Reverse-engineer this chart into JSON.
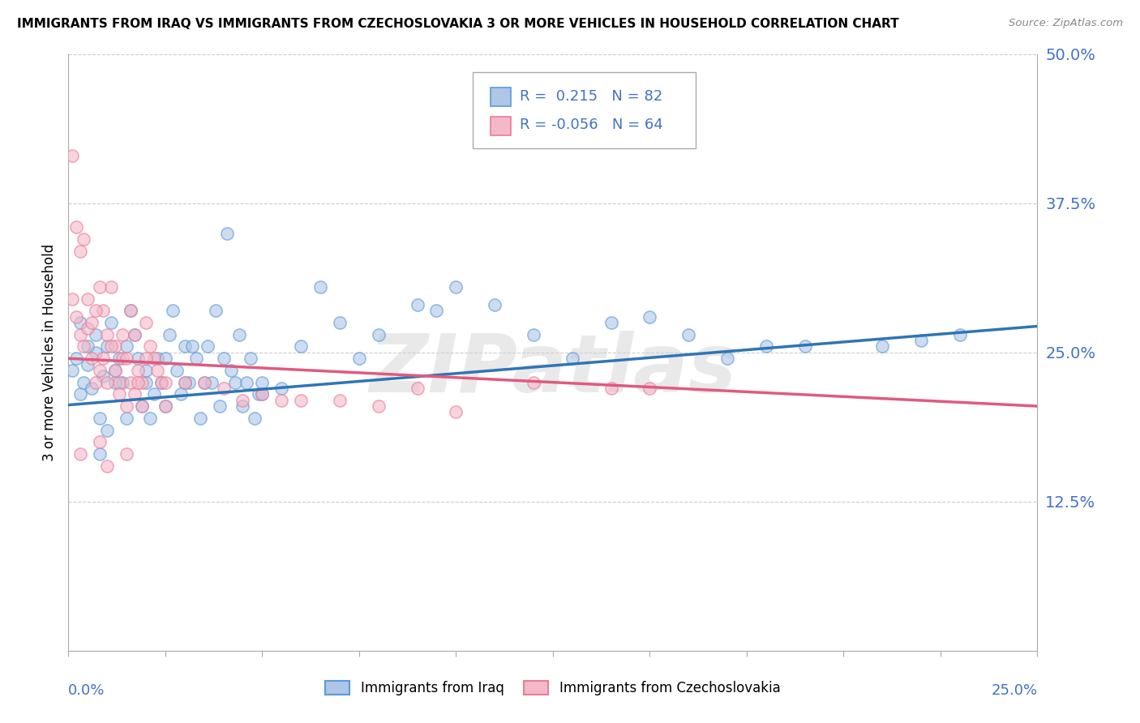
{
  "title": "IMMIGRANTS FROM IRAQ VS IMMIGRANTS FROM CZECHOSLOVAKIA 3 OR MORE VEHICLES IN HOUSEHOLD CORRELATION CHART",
  "source": "Source: ZipAtlas.com",
  "ylabel_label": "3 or more Vehicles in Household",
  "legend_blue_label": "Immigrants from Iraq",
  "legend_pink_label": "Immigrants from Czechoslovakia",
  "R_blue": 0.215,
  "N_blue": 82,
  "R_pink": -0.056,
  "N_pink": 64,
  "blue_color": "#aec6e8",
  "pink_color": "#f4b8c8",
  "blue_edge_color": "#5b9bd5",
  "pink_edge_color": "#e87d9a",
  "blue_line_color": "#2e75b6",
  "pink_line_color": "#e05a80",
  "watermark": "ZIPatlas",
  "blue_points": [
    [
      0.001,
      0.235
    ],
    [
      0.002,
      0.245
    ],
    [
      0.003,
      0.215
    ],
    [
      0.004,
      0.225
    ],
    [
      0.005,
      0.24
    ],
    [
      0.006,
      0.22
    ],
    [
      0.007,
      0.25
    ],
    [
      0.008,
      0.195
    ],
    [
      0.009,
      0.23
    ],
    [
      0.01,
      0.255
    ],
    [
      0.011,
      0.275
    ],
    [
      0.012,
      0.235
    ],
    [
      0.013,
      0.245
    ],
    [
      0.014,
      0.225
    ],
    [
      0.015,
      0.255
    ],
    [
      0.016,
      0.285
    ],
    [
      0.017,
      0.265
    ],
    [
      0.018,
      0.245
    ],
    [
      0.019,
      0.205
    ],
    [
      0.02,
      0.225
    ],
    [
      0.021,
      0.195
    ],
    [
      0.022,
      0.215
    ],
    [
      0.023,
      0.245
    ],
    [
      0.024,
      0.225
    ],
    [
      0.025,
      0.205
    ],
    [
      0.026,
      0.265
    ],
    [
      0.027,
      0.285
    ],
    [
      0.028,
      0.235
    ],
    [
      0.029,
      0.215
    ],
    [
      0.03,
      0.255
    ],
    [
      0.031,
      0.225
    ],
    [
      0.032,
      0.255
    ],
    [
      0.033,
      0.245
    ],
    [
      0.034,
      0.195
    ],
    [
      0.035,
      0.225
    ],
    [
      0.036,
      0.255
    ],
    [
      0.037,
      0.225
    ],
    [
      0.038,
      0.285
    ],
    [
      0.039,
      0.205
    ],
    [
      0.04,
      0.245
    ],
    [
      0.041,
      0.35
    ],
    [
      0.042,
      0.235
    ],
    [
      0.043,
      0.225
    ],
    [
      0.044,
      0.265
    ],
    [
      0.045,
      0.205
    ],
    [
      0.046,
      0.225
    ],
    [
      0.047,
      0.245
    ],
    [
      0.048,
      0.195
    ],
    [
      0.049,
      0.215
    ],
    [
      0.05,
      0.225
    ],
    [
      0.06,
      0.255
    ],
    [
      0.065,
      0.305
    ],
    [
      0.07,
      0.275
    ],
    [
      0.075,
      0.245
    ],
    [
      0.08,
      0.265
    ],
    [
      0.09,
      0.29
    ],
    [
      0.095,
      0.285
    ],
    [
      0.1,
      0.305
    ],
    [
      0.11,
      0.29
    ],
    [
      0.12,
      0.265
    ],
    [
      0.13,
      0.245
    ],
    [
      0.14,
      0.275
    ],
    [
      0.15,
      0.28
    ],
    [
      0.16,
      0.265
    ],
    [
      0.17,
      0.245
    ],
    [
      0.18,
      0.255
    ],
    [
      0.19,
      0.255
    ],
    [
      0.21,
      0.255
    ],
    [
      0.22,
      0.26
    ],
    [
      0.23,
      0.265
    ],
    [
      0.01,
      0.185
    ],
    [
      0.008,
      0.165
    ],
    [
      0.015,
      0.195
    ],
    [
      0.05,
      0.215
    ],
    [
      0.055,
      0.22
    ],
    [
      0.005,
      0.255
    ],
    [
      0.003,
      0.275
    ],
    [
      0.007,
      0.265
    ],
    [
      0.012,
      0.225
    ],
    [
      0.02,
      0.235
    ],
    [
      0.025,
      0.245
    ],
    [
      0.03,
      0.225
    ]
  ],
  "pink_points": [
    [
      0.001,
      0.295
    ],
    [
      0.002,
      0.28
    ],
    [
      0.003,
      0.265
    ],
    [
      0.004,
      0.255
    ],
    [
      0.005,
      0.27
    ],
    [
      0.006,
      0.245
    ],
    [
      0.007,
      0.225
    ],
    [
      0.008,
      0.235
    ],
    [
      0.009,
      0.285
    ],
    [
      0.01,
      0.265
    ],
    [
      0.011,
      0.305
    ],
    [
      0.012,
      0.255
    ],
    [
      0.013,
      0.225
    ],
    [
      0.014,
      0.245
    ],
    [
      0.015,
      0.205
    ],
    [
      0.016,
      0.225
    ],
    [
      0.017,
      0.215
    ],
    [
      0.018,
      0.235
    ],
    [
      0.019,
      0.225
    ],
    [
      0.02,
      0.275
    ],
    [
      0.021,
      0.255
    ],
    [
      0.022,
      0.245
    ],
    [
      0.023,
      0.235
    ],
    [
      0.024,
      0.225
    ],
    [
      0.025,
      0.205
    ],
    [
      0.002,
      0.355
    ],
    [
      0.003,
      0.335
    ],
    [
      0.004,
      0.345
    ],
    [
      0.001,
      0.415
    ],
    [
      0.005,
      0.295
    ],
    [
      0.006,
      0.275
    ],
    [
      0.007,
      0.285
    ],
    [
      0.008,
      0.305
    ],
    [
      0.009,
      0.245
    ],
    [
      0.01,
      0.225
    ],
    [
      0.011,
      0.255
    ],
    [
      0.012,
      0.235
    ],
    [
      0.013,
      0.215
    ],
    [
      0.014,
      0.265
    ],
    [
      0.015,
      0.245
    ],
    [
      0.016,
      0.285
    ],
    [
      0.017,
      0.265
    ],
    [
      0.018,
      0.225
    ],
    [
      0.019,
      0.205
    ],
    [
      0.02,
      0.245
    ],
    [
      0.025,
      0.225
    ],
    [
      0.03,
      0.225
    ],
    [
      0.035,
      0.225
    ],
    [
      0.04,
      0.22
    ],
    [
      0.045,
      0.21
    ],
    [
      0.05,
      0.215
    ],
    [
      0.055,
      0.21
    ],
    [
      0.06,
      0.21
    ],
    [
      0.07,
      0.21
    ],
    [
      0.08,
      0.205
    ],
    [
      0.09,
      0.22
    ],
    [
      0.1,
      0.2
    ],
    [
      0.12,
      0.225
    ],
    [
      0.14,
      0.22
    ],
    [
      0.15,
      0.22
    ],
    [
      0.003,
      0.165
    ],
    [
      0.008,
      0.175
    ],
    [
      0.01,
      0.155
    ],
    [
      0.015,
      0.165
    ]
  ],
  "blue_trend": [
    0.206,
    0.272
  ],
  "pink_trend": [
    0.245,
    0.205
  ],
  "xmin": 0.0,
  "xmax": 0.25,
  "ymin": 0.0,
  "ymax": 0.5,
  "yticks": [
    0.0,
    0.125,
    0.25,
    0.375,
    0.5
  ],
  "ytick_labels": [
    "",
    "12.5%",
    "25.0%",
    "37.5%",
    "50.0%"
  ],
  "xticks": [
    0.0,
    0.025,
    0.05,
    0.075,
    0.1,
    0.125,
    0.15,
    0.175,
    0.2,
    0.225,
    0.25
  ]
}
